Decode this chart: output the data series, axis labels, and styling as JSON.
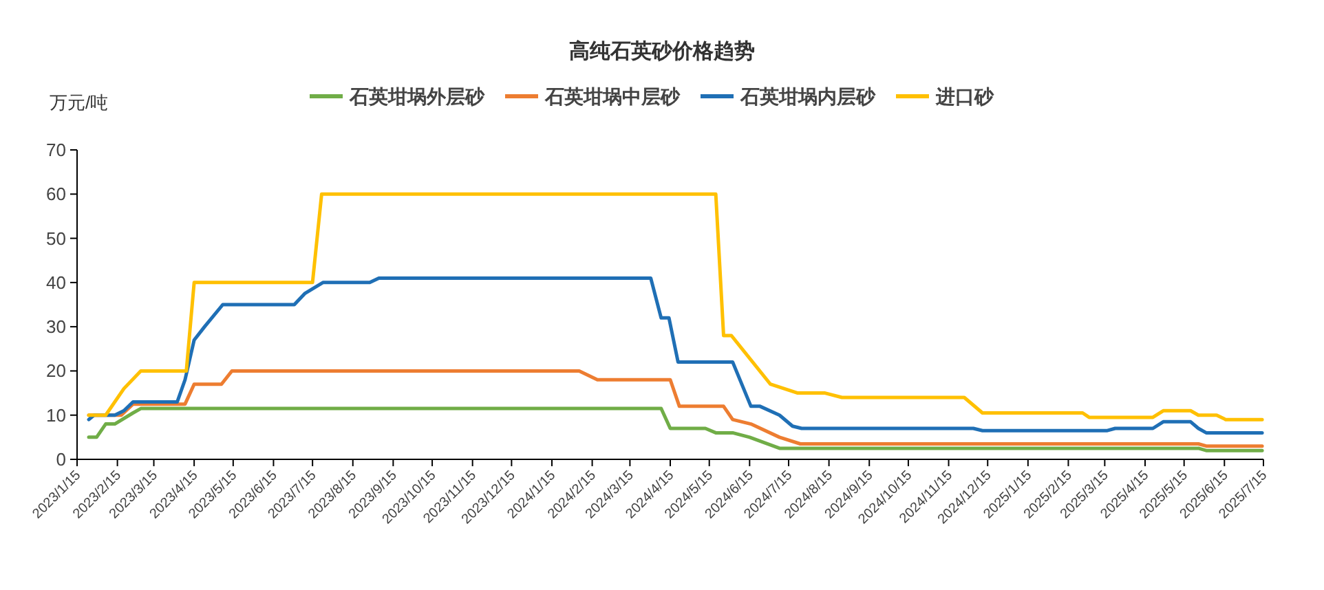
{
  "chart_data": {
    "type": "line",
    "title": "高纯石英砂价格趋势",
    "ylabel": "万元/吨",
    "legend": "top",
    "xlim": [
      "2023-01-15",
      "2025-07-15"
    ],
    "xticks": [
      {
        "value": "2023-01-15",
        "label": "2023/1/15"
      },
      {
        "value": "2023-02-15",
        "label": "2023/2/15"
      },
      {
        "value": "2023-03-15",
        "label": "2023/3/15"
      },
      {
        "value": "2023-04-15",
        "label": "2023/4/15"
      },
      {
        "value": "2023-05-15",
        "label": "2023/5/15"
      },
      {
        "value": "2023-06-15",
        "label": "2023/6/15"
      },
      {
        "value": "2023-07-15",
        "label": "2023/7/15"
      },
      {
        "value": "2023-08-15",
        "label": "2023/8/15"
      },
      {
        "value": "2023-09-15",
        "label": "2023/9/15"
      },
      {
        "value": "2023-10-15",
        "label": "2023/10/15"
      },
      {
        "value": "2023-11-15",
        "label": "2023/11/15"
      },
      {
        "value": "2023-12-15",
        "label": "2023/12/15"
      },
      {
        "value": "2024-01-15",
        "label": "2024/1/15"
      },
      {
        "value": "2024-02-15",
        "label": "2024/2/15"
      },
      {
        "value": "2024-03-15",
        "label": "2024/3/15"
      },
      {
        "value": "2024-04-15",
        "label": "2024/4/15"
      },
      {
        "value": "2024-05-15",
        "label": "2024/5/15"
      },
      {
        "value": "2024-06-15",
        "label": "2024/6/15"
      },
      {
        "value": "2024-07-15",
        "label": "2024/7/15"
      },
      {
        "value": "2024-08-15",
        "label": "2024/8/15"
      },
      {
        "value": "2024-09-15",
        "label": "2024/9/15"
      },
      {
        "value": "2024-10-15",
        "label": "2024/10/15"
      },
      {
        "value": "2024-11-15",
        "label": "2024/11/15"
      },
      {
        "value": "2024-12-15",
        "label": "2024/12/15"
      },
      {
        "value": "2025-01-15",
        "label": "2025/1/15"
      },
      {
        "value": "2025-02-15",
        "label": "2025/2/15"
      },
      {
        "value": "2025-03-15",
        "label": "2025/3/15"
      },
      {
        "value": "2025-04-15",
        "label": "2025/4/15"
      },
      {
        "value": "2025-05-15",
        "label": "2025/5/15"
      },
      {
        "value": "2025-06-15",
        "label": "2025/6/15"
      },
      {
        "value": "2025-07-15",
        "label": "2025/7/15"
      }
    ],
    "ylim": [
      0,
      70
    ],
    "yticks": [
      0,
      10,
      20,
      30,
      40,
      50,
      60,
      70
    ],
    "series": [
      {
        "name": "石英坩埚外层砂",
        "color": "#70ad47",
        "x": [
          "2023-01-24",
          "2023-01-30",
          "2023-02-06",
          "2023-02-13",
          "2023-02-27",
          "2023-03-05",
          "2024-04-08",
          "2024-04-15",
          "2024-05-12",
          "2024-05-20",
          "2024-06-02",
          "2024-06-15",
          "2024-07-08",
          "2025-05-26",
          "2025-06-01",
          "2025-07-14"
        ],
        "values": [
          5,
          5,
          8,
          8,
          10.5,
          11.5,
          11.5,
          7,
          7,
          6,
          6,
          5,
          2.5,
          2.5,
          2,
          2
        ]
      },
      {
        "name": "石英坩埚中层砂",
        "color": "#ed7d31",
        "x": [
          "2023-01-24",
          "2023-02-18",
          "2023-02-27",
          "2023-04-08",
          "2023-04-15",
          "2023-05-06",
          "2023-05-14",
          "2024-02-05",
          "2024-02-19",
          "2024-04-15",
          "2024-04-22",
          "2024-05-26",
          "2024-06-02",
          "2024-06-16",
          "2024-07-08",
          "2024-07-24",
          "2025-05-26",
          "2025-06-01",
          "2025-07-14"
        ],
        "values": [
          10,
          10,
          12.5,
          12.5,
          17,
          17,
          20,
          20,
          18,
          18,
          12,
          12,
          9,
          8,
          5,
          3.5,
          3.5,
          3,
          3
        ]
      },
      {
        "name": "石英坩埚内层砂",
        "color": "#1f6fb5",
        "x": [
          "2023-01-24",
          "2023-01-28",
          "2023-02-13",
          "2023-02-20",
          "2023-02-27",
          "2023-04-02",
          "2023-04-08",
          "2023-04-15",
          "2023-04-23",
          "2023-05-07",
          "2023-07-01",
          "2023-07-09",
          "2023-07-23",
          "2023-08-28",
          "2023-09-04",
          "2024-03-31",
          "2024-04-08",
          "2024-04-14",
          "2024-04-21",
          "2024-06-02",
          "2024-06-16",
          "2024-06-23",
          "2024-07-08",
          "2024-07-18",
          "2024-07-25",
          "2024-12-04",
          "2024-12-11",
          "2025-03-17",
          "2025-03-23",
          "2025-04-21",
          "2025-04-29",
          "2025-05-20",
          "2025-05-26",
          "2025-06-01",
          "2025-07-14"
        ],
        "values": [
          9,
          10,
          10,
          11,
          13,
          13,
          18,
          27,
          30,
          35,
          35,
          37.5,
          40,
          40,
          41,
          41,
          32,
          32,
          22,
          22,
          12,
          12,
          10,
          7.5,
          7,
          7,
          6.5,
          6.5,
          7,
          7,
          8.5,
          8.5,
          7,
          6,
          6
        ]
      },
      {
        "name": "进口砂",
        "color": "#ffc000",
        "x": [
          "2023-01-24",
          "2023-02-06",
          "2023-02-20",
          "2023-03-05",
          "2023-04-09",
          "2023-04-15",
          "2023-07-15",
          "2023-07-22",
          "2024-05-20",
          "2024-05-26",
          "2024-06-01",
          "2024-07-01",
          "2024-07-22",
          "2024-08-12",
          "2024-08-25",
          "2024-11-27",
          "2024-12-11",
          "2025-02-26",
          "2025-03-03",
          "2025-04-21",
          "2025-04-29",
          "2025-05-20",
          "2025-05-26",
          "2025-06-09",
          "2025-06-16",
          "2025-07-14"
        ],
        "values": [
          10,
          10,
          16,
          20,
          20,
          40,
          40,
          60,
          60,
          28,
          28,
          17,
          15,
          15,
          14,
          14,
          10.5,
          10.5,
          9.5,
          9.5,
          11,
          11,
          10,
          10,
          9,
          9
        ]
      }
    ]
  }
}
